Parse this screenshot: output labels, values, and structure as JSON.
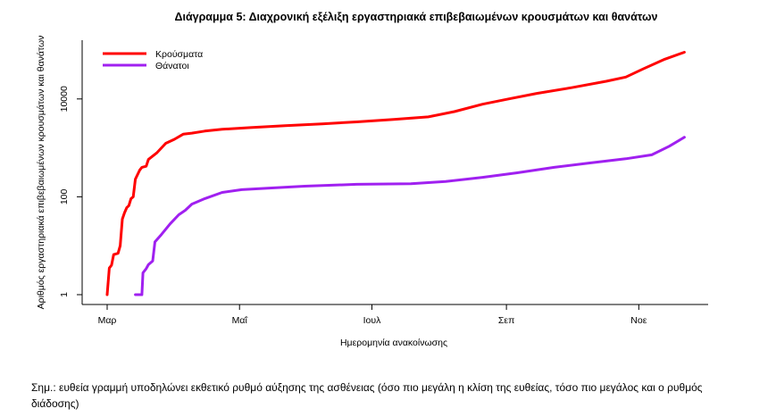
{
  "chart_data": {
    "type": "line",
    "title": "Διάγραμμα 5: Διαχρονική εξέλιξη εργαστηριακά επιβεβαιωμένων κρουσμάτων και θανάτων",
    "xlabel": "Ημερομηνία ανακοίνωσης",
    "ylabel": "Αριθμός εργαστηριακά επιβεβαιωμένων κρουσμάτων και θανάτων",
    "yscale": "log",
    "ylim": [
      1,
      100000
    ],
    "xlim_days": [
      -12,
      276
    ],
    "x_unit": "days since 1 Mar",
    "y_ticks": [
      {
        "value": 1,
        "label": "1"
      },
      {
        "value": 100,
        "label": "100"
      },
      {
        "value": 10000,
        "label": "10000"
      }
    ],
    "x_ticks": [
      {
        "day": 0,
        "label": "Μαρ"
      },
      {
        "day": 61,
        "label": "Μαΐ"
      },
      {
        "day": 122,
        "label": "Ιουλ"
      },
      {
        "day": 184,
        "label": "Σεπ"
      },
      {
        "day": 245,
        "label": "Νοε"
      }
    ],
    "grid": false,
    "legend_position": "top-left",
    "series": [
      {
        "name": "Κρούσματα",
        "color": "#ff0000",
        "points": [
          [
            0,
            1
          ],
          [
            1,
            3.5
          ],
          [
            2,
            4
          ],
          [
            3,
            6.6
          ],
          [
            5,
            7
          ],
          [
            6,
            10
          ],
          [
            7,
            35
          ],
          [
            8,
            47
          ],
          [
            9,
            60
          ],
          [
            10,
            66
          ],
          [
            11,
            92
          ],
          [
            12,
            100
          ],
          [
            13,
            230
          ],
          [
            15,
            350
          ],
          [
            16,
            400
          ],
          [
            18,
            420
          ],
          [
            19,
            580
          ],
          [
            23,
            800
          ],
          [
            27,
            1240
          ],
          [
            31,
            1500
          ],
          [
            35,
            1900
          ],
          [
            39,
            2000
          ],
          [
            45,
            2200
          ],
          [
            53,
            2400
          ],
          [
            66,
            2600
          ],
          [
            82,
            2850
          ],
          [
            99,
            3100
          ],
          [
            115,
            3400
          ],
          [
            132,
            3800
          ],
          [
            148,
            4300
          ],
          [
            160,
            5500
          ],
          [
            173,
            7800
          ],
          [
            185,
            10000
          ],
          [
            198,
            13000
          ],
          [
            214,
            17000
          ],
          [
            230,
            23000
          ],
          [
            239,
            28000
          ],
          [
            247,
            41000
          ],
          [
            257,
            65000
          ],
          [
            266,
            90000
          ]
        ]
      },
      {
        "name": "Θάνατοι",
        "color": "#a020f0",
        "points": [
          [
            13,
            1
          ],
          [
            16,
            1
          ],
          [
            16.5,
            2.8
          ],
          [
            18,
            3.4
          ],
          [
            19,
            4.1
          ],
          [
            21,
            4.9
          ],
          [
            22,
            12
          ],
          [
            25,
            17
          ],
          [
            29,
            28
          ],
          [
            33,
            43
          ],
          [
            36,
            53
          ],
          [
            39,
            71
          ],
          [
            45,
            92
          ],
          [
            53,
            123
          ],
          [
            62,
            140
          ],
          [
            74,
            150
          ],
          [
            91,
            165
          ],
          [
            115,
            180
          ],
          [
            140,
            185
          ],
          [
            156,
            205
          ],
          [
            173,
            250
          ],
          [
            189,
            310
          ],
          [
            206,
            400
          ],
          [
            222,
            490
          ],
          [
            239,
            600
          ],
          [
            251,
            720
          ],
          [
            259,
            1080
          ],
          [
            266,
            1650
          ]
        ]
      }
    ]
  },
  "note": "Σημ.: ευθεία γραμμή υποδηλώνει εκθετικό ρυθμό αύξησης της ασθένειας (όσο πιο μεγάλη η κλίση της ευθείας, τόσο πιο μεγάλος και ο ρυθμός διάδοσης)"
}
